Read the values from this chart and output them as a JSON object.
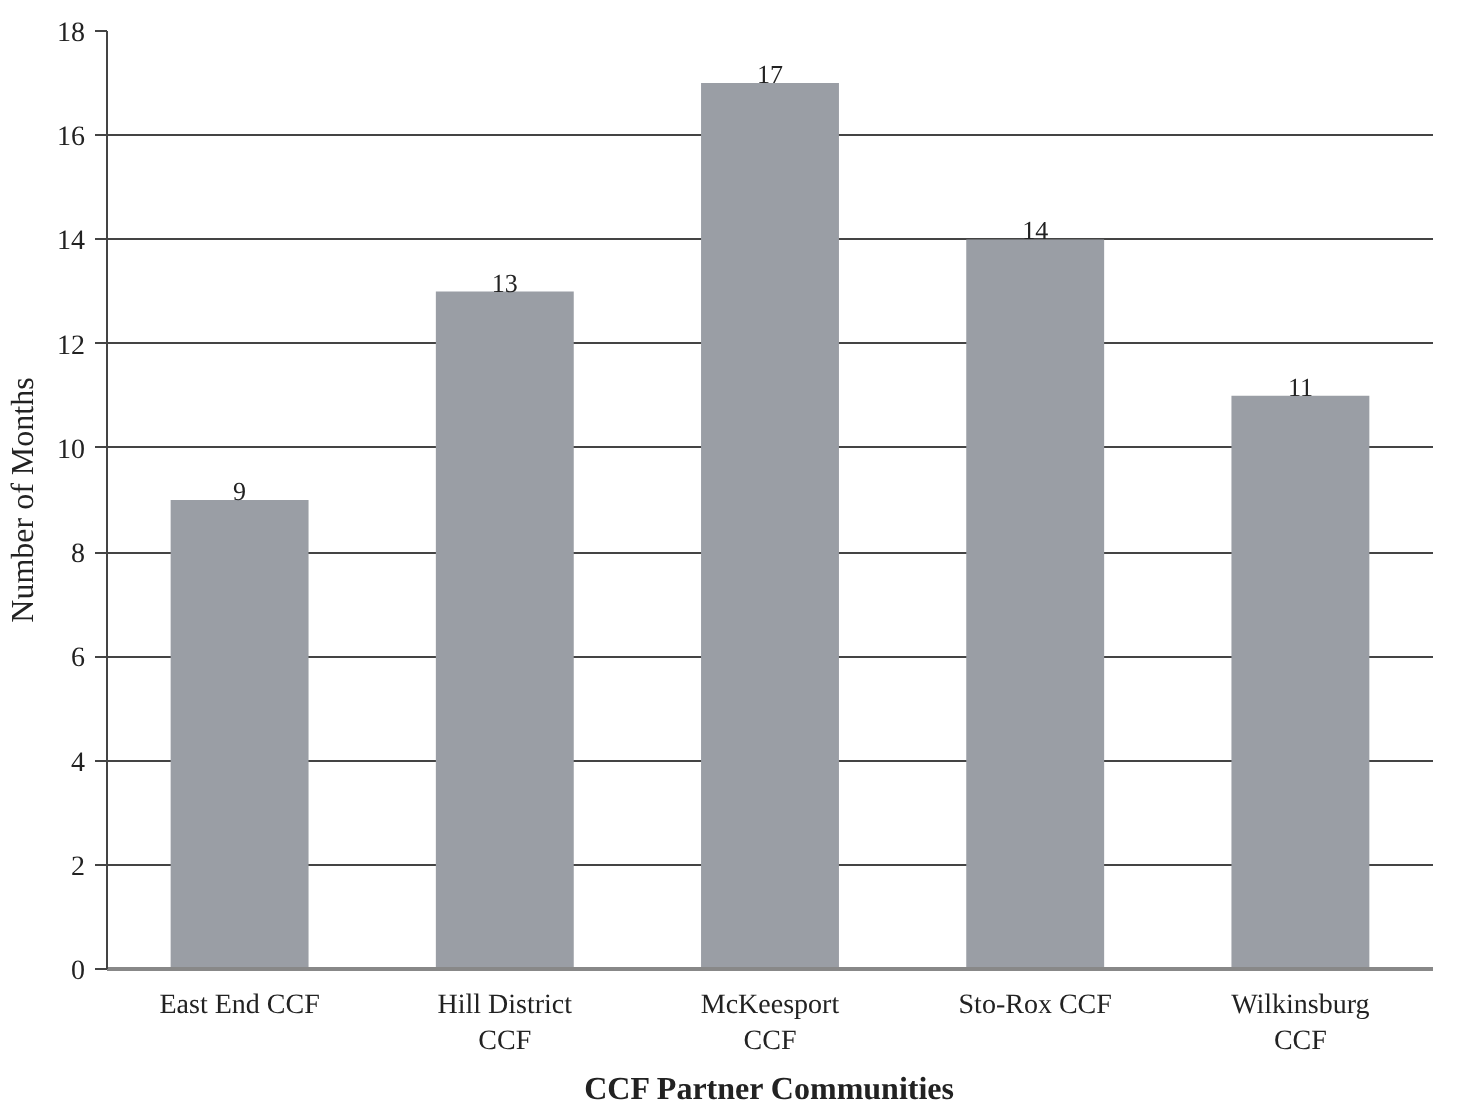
{
  "chart_data": {
    "type": "bar",
    "xlabel": "CCF Partner Communities",
    "ylabel": "Number of Months",
    "categories": [
      "East End CCF",
      "Hill District CCF",
      "McKeesport CCF",
      "Sto-Rox CCF",
      "Wilkinsburg CCF"
    ],
    "values": [
      9,
      13,
      17,
      14,
      11
    ],
    "color": "#9a9ea5",
    "ylim": [
      0,
      18
    ],
    "yticks": [
      0,
      2,
      4,
      6,
      8,
      10,
      12,
      14,
      16,
      18
    ],
    "grid": "y",
    "data_labels": true
  }
}
